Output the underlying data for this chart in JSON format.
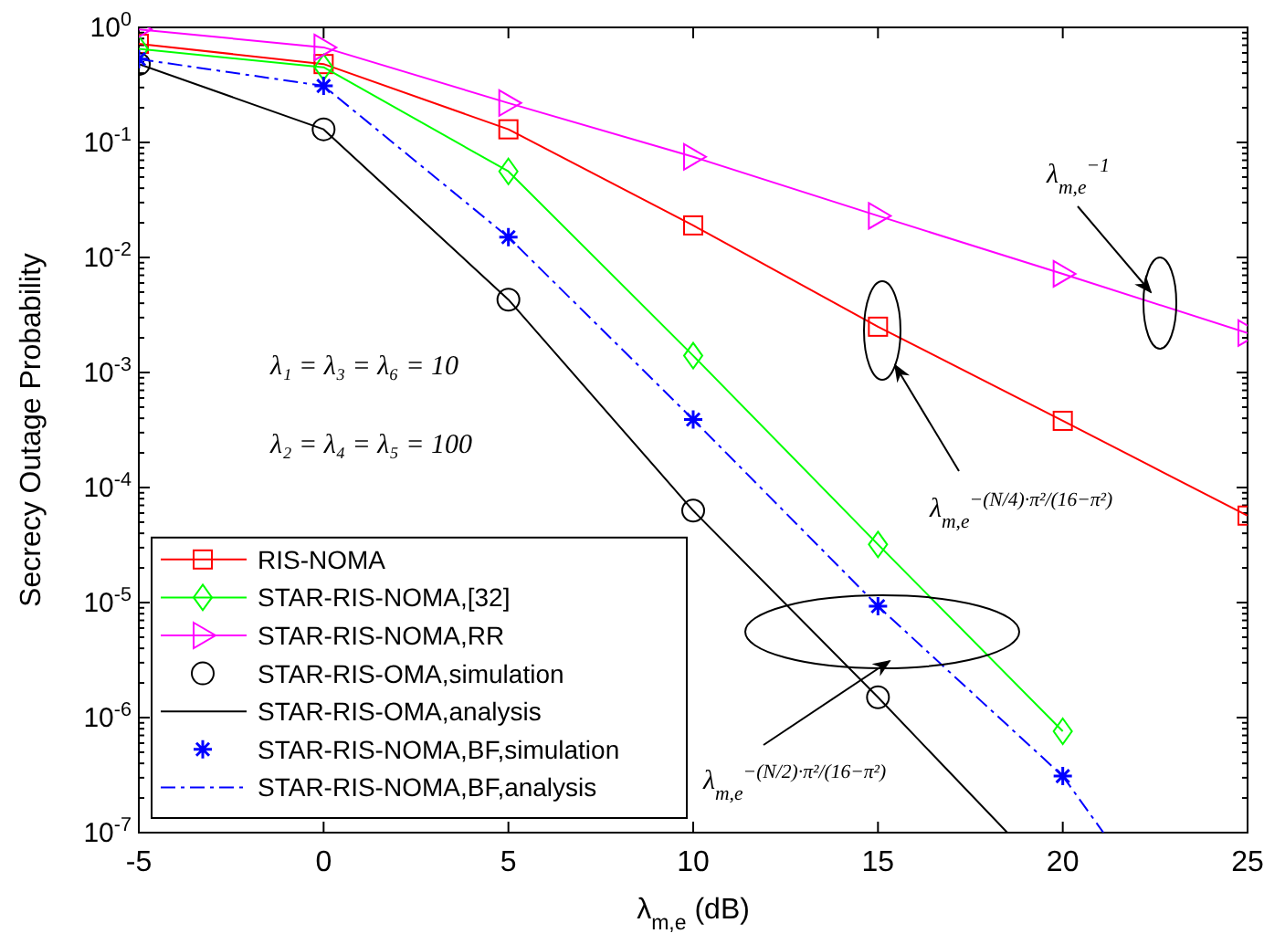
{
  "chart_data": {
    "type": "line",
    "xlabel": "λ$_{m,e}$ (dB)",
    "ylabel": "Secrecy Outage Probability",
    "log": "y",
    "legend": "bottom left",
    "grid": false,
    "x": [
      -5,
      0,
      5,
      10,
      15,
      20,
      25
    ],
    "xlim": [
      -5,
      25
    ],
    "xticks": [
      -5,
      0,
      5,
      10,
      15,
      20,
      25
    ],
    "ylim": [
      1e-07,
      1
    ],
    "yticks": [
      {
        "value": 1e-07,
        "label": "10$^{-7}$"
      },
      {
        "value": 1e-06,
        "label": "10$^{-6}$"
      },
      {
        "value": 1e-05,
        "label": "10$^{-5}$"
      },
      {
        "value": 0.0001,
        "label": "10$^{-4}$"
      },
      {
        "value": 0.001,
        "label": "10$^{-3}$"
      },
      {
        "value": 0.01,
        "label": "10$^{-2}$"
      },
      {
        "value": 0.1,
        "label": "10$^{-1}$"
      },
      {
        "value": 1,
        "label": "10$^{0}$"
      }
    ],
    "series": [
      {
        "name": "RIS-NOMA",
        "color": "#ff0000",
        "marker": "square",
        "line_style": "solid",
        "values": [
          0.72,
          0.48,
          0.13,
          0.019,
          0.0025,
          0.00038,
          5.7e-05
        ]
      },
      {
        "name": "STAR-RIS-NOMA,[32]",
        "color": "#00ff00",
        "marker": "diamond",
        "line_style": "solid",
        "x": [
          -5,
          0,
          5,
          10,
          15,
          20
        ],
        "values": [
          0.65,
          0.45,
          0.056,
          0.0014,
          3.2e-05,
          7.6e-07
        ]
      },
      {
        "name": "STAR-RIS-NOMA,RR",
        "color": "#ff00ff",
        "marker": "triangle",
        "line_style": "solid",
        "values": [
          0.96,
          0.67,
          0.22,
          0.075,
          0.023,
          0.0072,
          0.0022
        ]
      },
      {
        "name": "STAR-RIS-OMA,simulation",
        "type": "scatter",
        "color": "#000000",
        "marker": "circle",
        "x": [
          -5,
          0,
          5,
          10,
          15
        ],
        "values": [
          0.48,
          0.13,
          0.0043,
          6.3e-05,
          1.5e-06
        ]
      },
      {
        "name": "STAR-RIS-OMA,analysis",
        "color": "#000000",
        "marker": "none",
        "line_style": "solid",
        "x": [
          -5,
          0,
          5,
          10,
          15,
          18.5
        ],
        "values": [
          0.48,
          0.13,
          0.0043,
          6.3e-05,
          1.5e-06,
          1e-07
        ]
      },
      {
        "name": "STAR-RIS-NOMA,BF,simulation",
        "type": "scatter",
        "color": "#0000ff",
        "marker": "cross",
        "x": [
          -5,
          0,
          5,
          10,
          15,
          20
        ],
        "values": [
          0.53,
          0.31,
          0.015,
          0.00039,
          9.3e-06,
          3.1e-07
        ]
      },
      {
        "name": "STAR-RIS-NOMA,BF,analysis",
        "color": "#0000ff",
        "marker": "none",
        "line_style": "dashed",
        "x": [
          -5,
          0,
          5,
          10,
          15,
          20,
          21.1
        ],
        "values": [
          0.53,
          0.31,
          0.015,
          0.00039,
          9.3e-06,
          3.1e-07,
          1e-07
        ]
      }
    ],
    "annotations": [
      "λ₁ = λ₃ = λ₆ = 10",
      "λ₂ = λ₄ = λ₅ = 100",
      "λ$_{m,e}$$^{−1}$",
      "λ$_{m,e}$$^{−(N/4)·π²/(16−π²)}$",
      "λ$_{m,e}$$^{−(N/2)·π²/(16−π²)}$"
    ]
  }
}
